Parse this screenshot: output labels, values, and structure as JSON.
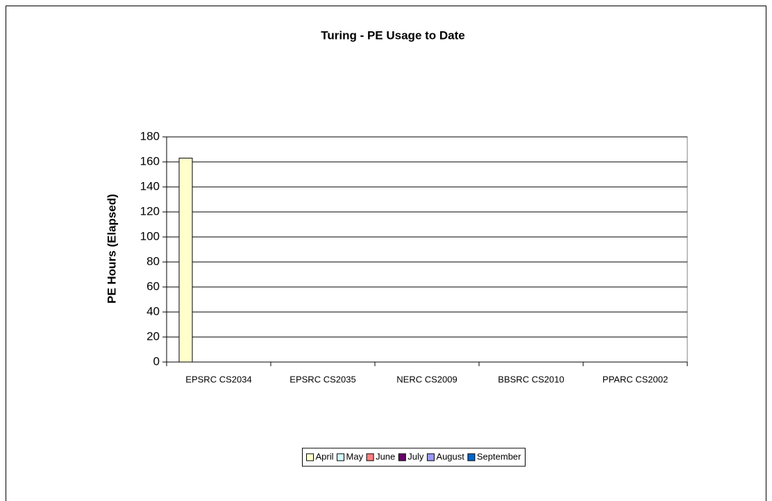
{
  "chart_data": {
    "type": "bar",
    "title": "Turing - PE Usage to Date",
    "ylabel": "PE Hours (Elapsed)",
    "categories": [
      "EPSRC CS2034",
      "EPSRC CS2035",
      "NERC CS2009",
      "BBSRC CS2010",
      "PPARC CS2002"
    ],
    "series": [
      {
        "name": "April",
        "color": "#ffffcc",
        "values": [
          163,
          0,
          0,
          0,
          0
        ]
      },
      {
        "name": "May",
        "color": "#ccffff",
        "values": [
          0,
          0,
          0,
          0,
          0
        ]
      },
      {
        "name": "June",
        "color": "#ff8080",
        "values": [
          0,
          0,
          0,
          0,
          0
        ]
      },
      {
        "name": "July",
        "color": "#660066",
        "values": [
          0,
          0,
          0,
          0,
          0
        ]
      },
      {
        "name": "August",
        "color": "#9999ff",
        "values": [
          0,
          0,
          0,
          0,
          0
        ]
      },
      {
        "name": "September",
        "color": "#0066cc",
        "values": [
          0,
          0,
          0,
          0,
          0
        ]
      }
    ],
    "ylim": [
      0,
      180
    ],
    "yticks": [
      0,
      20,
      40,
      60,
      80,
      100,
      120,
      140,
      160,
      180
    ],
    "grid": true,
    "legend": "bottom"
  }
}
